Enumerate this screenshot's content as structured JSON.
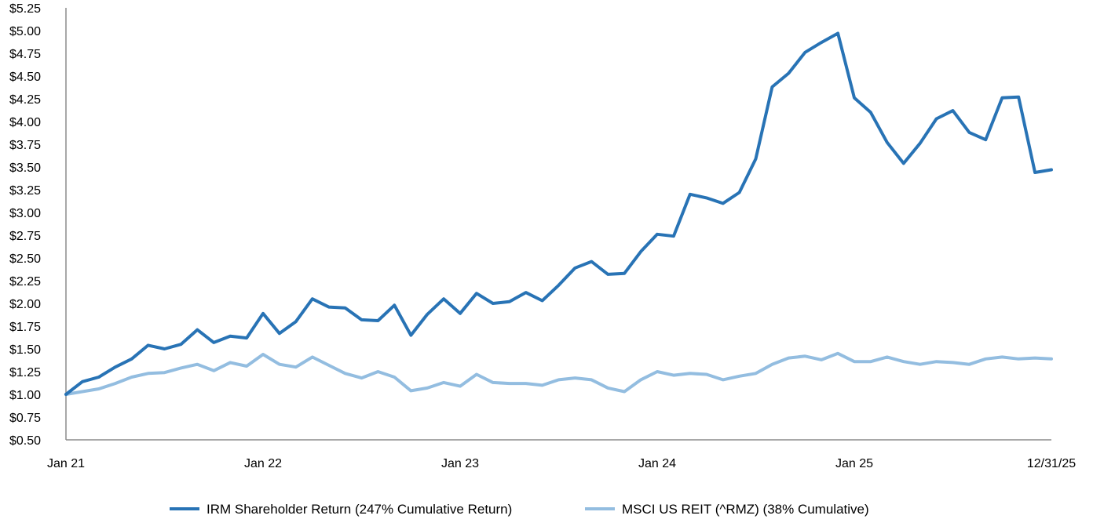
{
  "chart_data": {
    "type": "line",
    "title": "",
    "xlabel": "",
    "ylabel": "",
    "ylim": [
      0.5,
      5.25
    ],
    "y_ticks": [
      "$0.50",
      "$0.75",
      "$1.00",
      "$1.25",
      "$1.50",
      "$1.75",
      "$2.00",
      "$2.25",
      "$2.50",
      "$2.75",
      "$3.00",
      "$3.25",
      "$3.50",
      "$3.75",
      "$4.00",
      "$4.25",
      "$4.50",
      "$4.75",
      "$5.00",
      "$5.25"
    ],
    "y_tick_values": [
      0.5,
      0.75,
      1.0,
      1.25,
      1.5,
      1.75,
      2.0,
      2.25,
      2.5,
      2.75,
      3.0,
      3.25,
      3.5,
      3.75,
      4.0,
      4.25,
      4.5,
      4.75,
      5.0,
      5.25
    ],
    "x_ticks": [
      {
        "label": "Jan 21",
        "month": 0
      },
      {
        "label": "Jan 22",
        "month": 12
      },
      {
        "label": "Jan 23",
        "month": 24
      },
      {
        "label": "Jan 24",
        "month": 36
      },
      {
        "label": "Jan 25",
        "month": 48
      },
      {
        "label": "12/31/25",
        "month": 60
      }
    ],
    "x_range_months": [
      0,
      60
    ],
    "legend_position": "bottom",
    "series": [
      {
        "name": "IRM Shareholder Return (247% Cumulative Return)",
        "color": "#2873b5",
        "values": [
          1.0,
          1.14,
          1.19,
          1.3,
          1.39,
          1.54,
          1.5,
          1.55,
          1.71,
          1.57,
          1.64,
          1.62,
          1.89,
          1.67,
          1.8,
          2.05,
          1.96,
          1.95,
          1.82,
          1.81,
          1.98,
          1.65,
          1.88,
          2.05,
          1.89,
          2.11,
          2.0,
          2.02,
          2.12,
          2.03,
          2.2,
          2.39,
          2.46,
          2.32,
          2.33,
          2.57,
          2.76,
          2.74,
          3.2,
          3.16,
          3.1,
          3.22,
          3.59,
          4.38,
          4.53,
          4.76,
          4.87,
          4.97,
          4.26,
          4.1,
          3.77,
          3.54,
          3.76,
          4.03,
          4.12,
          3.88,
          3.8,
          4.26,
          4.27,
          3.44,
          3.47
        ]
      },
      {
        "name": "MSCI US REIT (^RMZ) (38% Cumulative)",
        "color": "#93bde0",
        "values": [
          1.0,
          1.03,
          1.06,
          1.12,
          1.19,
          1.23,
          1.24,
          1.29,
          1.33,
          1.26,
          1.35,
          1.31,
          1.44,
          1.33,
          1.3,
          1.41,
          1.32,
          1.23,
          1.18,
          1.25,
          1.19,
          1.04,
          1.07,
          1.13,
          1.09,
          1.22,
          1.13,
          1.12,
          1.12,
          1.1,
          1.16,
          1.18,
          1.16,
          1.07,
          1.03,
          1.16,
          1.25,
          1.21,
          1.23,
          1.22,
          1.16,
          1.2,
          1.23,
          1.33,
          1.4,
          1.42,
          1.38,
          1.45,
          1.36,
          1.36,
          1.41,
          1.36,
          1.33,
          1.36,
          1.35,
          1.33,
          1.39,
          1.41,
          1.39,
          1.4,
          1.39
        ]
      }
    ]
  }
}
